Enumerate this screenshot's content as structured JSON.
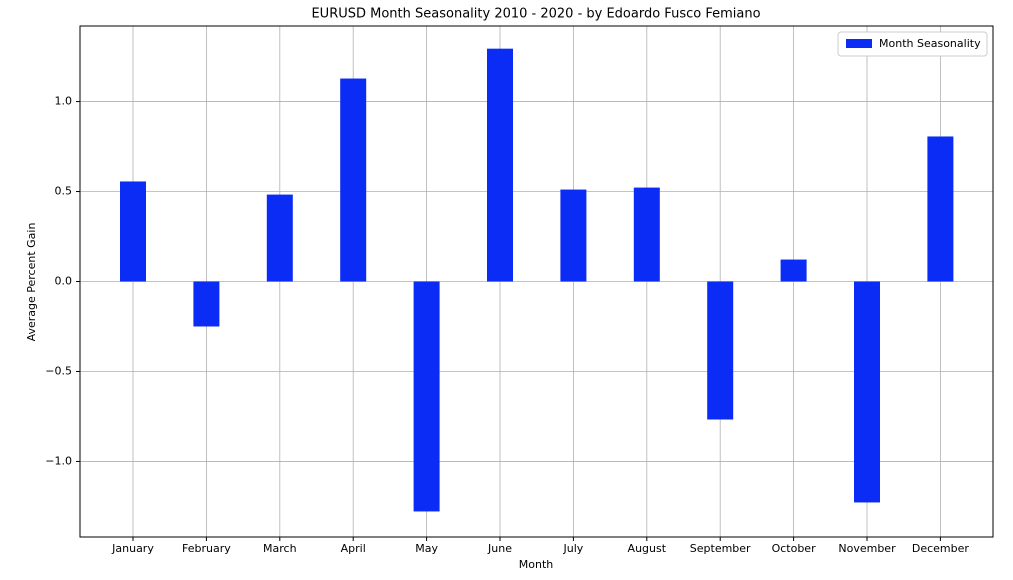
{
  "chart_data": {
    "type": "bar",
    "title": "EURUSD Month Seasonality 2010 - 2020  - by Edoardo Fusco Femiano",
    "x_label": "Month",
    "y_label": "Average Percent Gain",
    "categories": [
      "January",
      "February",
      "March",
      "April",
      "May",
      "June",
      "July",
      "August",
      "September",
      "October",
      "November",
      "December"
    ],
    "series": [
      {
        "name": "Month Seasonality",
        "color": "#0a2cf5",
        "values": [
          0.556,
          -0.25,
          0.483,
          1.128,
          -1.278,
          1.294,
          0.511,
          0.522,
          -0.767,
          0.122,
          -1.228,
          0.806
        ]
      }
    ],
    "ylim": [
      -1.42,
      1.42
    ],
    "yticks": [
      {
        "value": -1.0,
        "label": "−1.0"
      },
      {
        "value": -0.5,
        "label": "−0.5"
      },
      {
        "value": 0,
        "label": "0.0"
      },
      {
        "value": 0.5,
        "label": "0.5"
      },
      {
        "value": 1.0,
        "label": "1.0"
      }
    ],
    "grid": true,
    "legend": "upper right"
  }
}
